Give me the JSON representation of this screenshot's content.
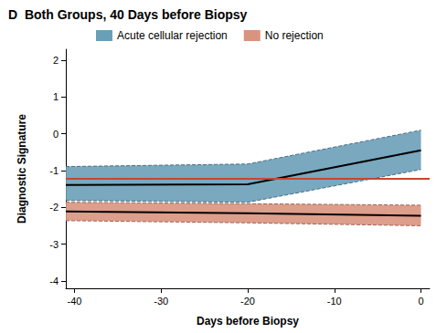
{
  "chart_data": {
    "type": "line",
    "title": "D  Both Groups, 40 Days before Biopsy",
    "x_label": "Days before Biopsy",
    "y_label": "Diagnostic Signature",
    "x": [
      -41,
      -20,
      0
    ],
    "series": [
      {
        "name": "Acute cellular rejection",
        "color": "#6a9fb8",
        "values": [
          -1.39,
          -1.37,
          -0.45
        ],
        "lower": [
          -1.81,
          -1.86,
          -0.97
        ],
        "upper": [
          -0.89,
          -0.82,
          0.1
        ]
      },
      {
        "name": "No rejection",
        "color": "#d9937e",
        "values": [
          -2.11,
          -2.16,
          -2.23
        ],
        "lower": [
          -2.36,
          -2.42,
          -2.5
        ],
        "upper": [
          -1.86,
          -1.9,
          -1.94
        ]
      }
    ],
    "reference_line": {
      "y": -1.22,
      "color": "#c8462e"
    },
    "xlim": [
      -41,
      1
    ],
    "ylim": [
      -4.2,
      2.3
    ],
    "xticks": [
      -40,
      -30,
      -20,
      -10,
      0
    ],
    "yticks": [
      -4,
      -3,
      -2,
      -1,
      0,
      1,
      2
    ],
    "grid": false,
    "legend": "top"
  }
}
